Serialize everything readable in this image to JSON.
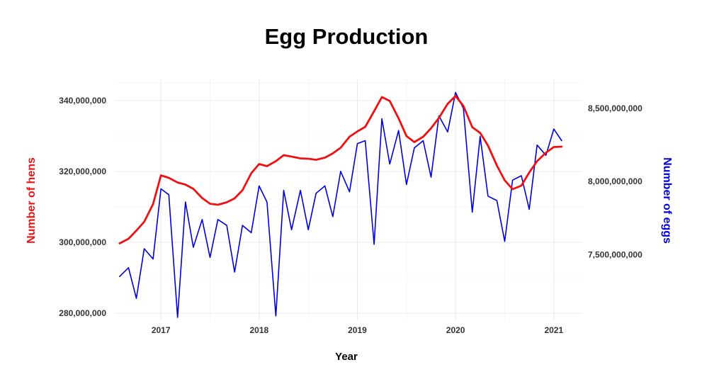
{
  "chart_data": {
    "type": "line",
    "title": "Egg Production",
    "xlabel": "Year",
    "ylabel_left": "Number of hens",
    "ylabel_right": "Number of eggs",
    "xlim": [
      2016.53,
      2021.29
    ],
    "xticks": [
      2017,
      2018,
      2019,
      2020,
      2021
    ],
    "ylim_left": [
      278000000,
      346000000
    ],
    "ylim_right": [
      7050000000,
      8700000000
    ],
    "yticks_left": [
      280000000,
      300000000,
      320000000,
      340000000
    ],
    "yticks_right": [
      7500000000,
      8000000000,
      8500000000
    ],
    "grid": true,
    "colors": {
      "hens": "#ee1111",
      "eggs": "#0000dd"
    },
    "x": [
      2016.58,
      2016.67,
      2016.75,
      2016.83,
      2016.92,
      2017.0,
      2017.08,
      2017.17,
      2017.25,
      2017.33,
      2017.42,
      2017.5,
      2017.58,
      2017.67,
      2017.75,
      2017.83,
      2017.92,
      2018.0,
      2018.08,
      2018.17,
      2018.25,
      2018.33,
      2018.42,
      2018.5,
      2018.58,
      2018.67,
      2018.75,
      2018.83,
      2018.92,
      2019.0,
      2019.08,
      2019.17,
      2019.25,
      2019.33,
      2019.42,
      2019.5,
      2019.58,
      2019.67,
      2019.75,
      2019.83,
      2019.92,
      2020.0,
      2020.08,
      2020.17,
      2020.25,
      2020.33,
      2020.42,
      2020.5,
      2020.58,
      2020.67,
      2020.75,
      2020.83,
      2020.92,
      2021.0,
      2021.08
    ],
    "series": [
      {
        "key": "hens",
        "values": [
          299700000,
          301000000,
          303300000,
          305800000,
          310800000,
          318900000,
          318200000,
          316900000,
          316300000,
          315100000,
          312500000,
          310900000,
          310600000,
          311300000,
          312400000,
          314700000,
          319500000,
          322100000,
          321500000,
          322900000,
          324600000,
          324200000,
          323700000,
          323600000,
          323300000,
          323900000,
          325100000,
          326700000,
          329800000,
          331300000,
          332600000,
          337000000,
          341000000,
          339900000,
          335000000,
          330000000,
          328300000,
          329800000,
          332200000,
          335100000,
          339100000,
          341300000,
          338500000,
          332500000,
          330900000,
          327300000,
          321700000,
          317500000,
          315000000,
          316000000,
          319700000,
          322900000,
          325300000,
          326900000,
          327000000
        ]
      },
      {
        "key": "eggs",
        "values": [
          7350000000,
          7410000000,
          7200000000,
          7540000000,
          7470000000,
          7950000000,
          7910000000,
          7070000000,
          7860000000,
          7550000000,
          7740000000,
          7480000000,
          7740000000,
          7700000000,
          7380000000,
          7700000000,
          7650000000,
          7970000000,
          7860000000,
          7080000000,
          7940000000,
          7670000000,
          7940000000,
          7670000000,
          7920000000,
          7970000000,
          7760000000,
          8070000000,
          7930000000,
          8260000000,
          8280000000,
          7570000000,
          8430000000,
          8120000000,
          8350000000,
          7980000000,
          8230000000,
          8280000000,
          8030000000,
          8450000000,
          8340000000,
          8610000000,
          8500000000,
          7790000000,
          8310000000,
          7900000000,
          7870000000,
          7590000000,
          8010000000,
          8040000000,
          7810000000,
          8250000000,
          8180000000,
          8360000000,
          8280000000
        ]
      }
    ]
  }
}
